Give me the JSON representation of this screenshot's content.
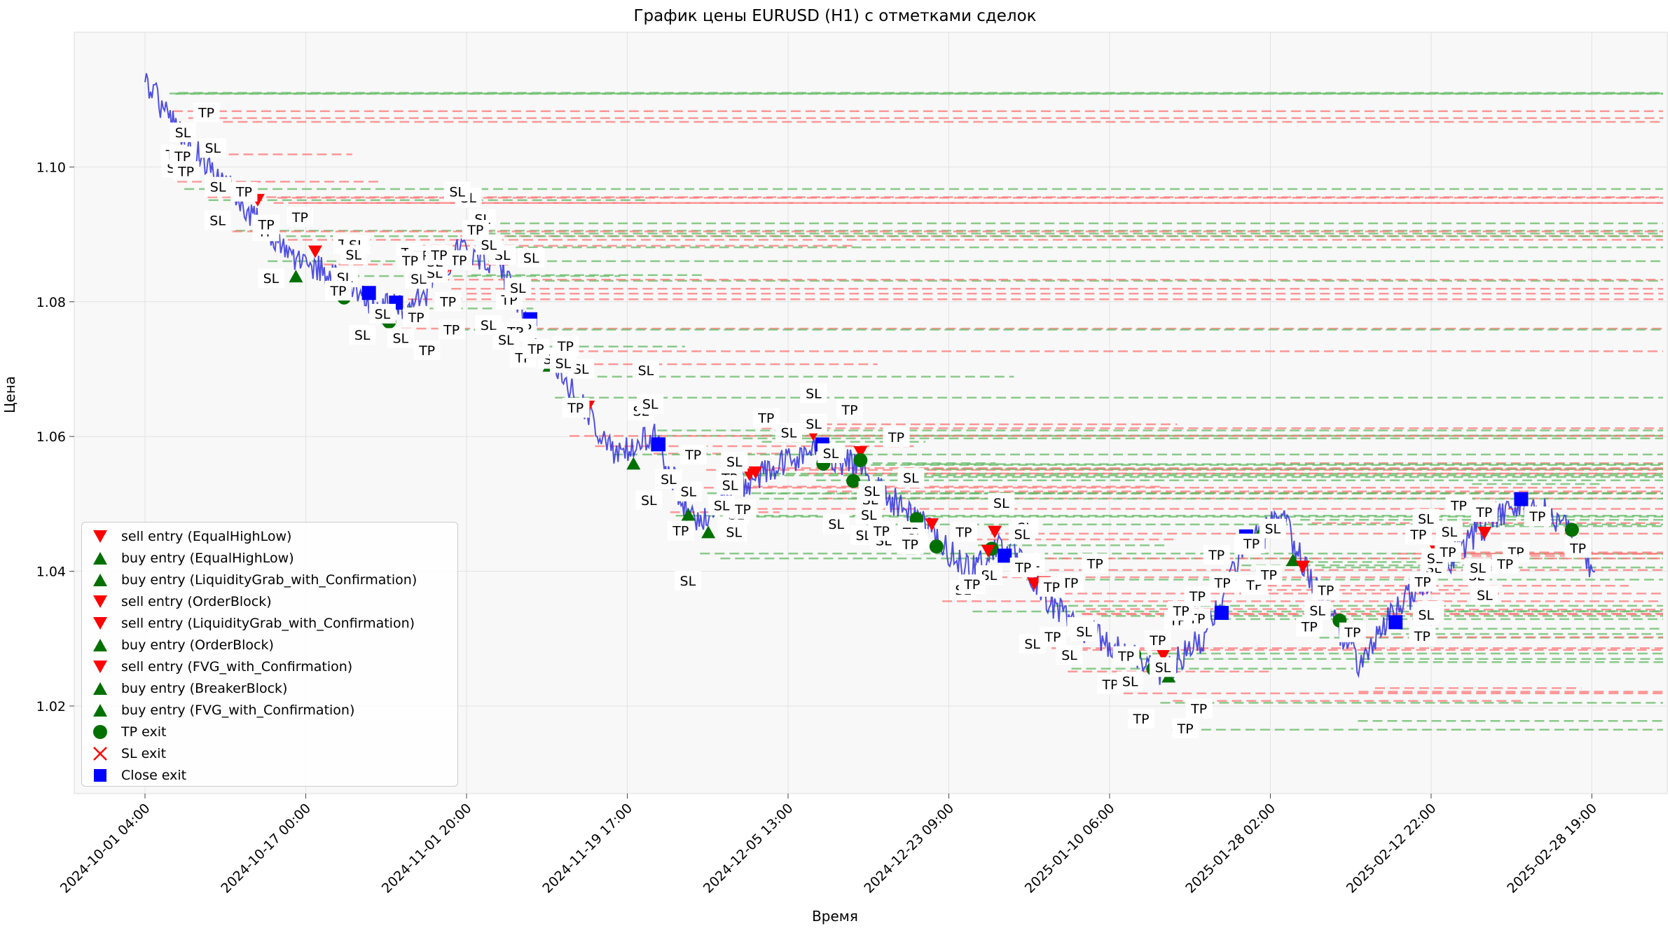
{
  "chart_data": {
    "type": "line",
    "title": "График цены EURUSD (H1) с отметками сделок",
    "xlabel": "Время",
    "ylabel": "Цена",
    "ylim": [
      1.007,
      1.12
    ],
    "y_ticks": [
      "1.02",
      "1.04",
      "1.06",
      "1.08",
      "1.10"
    ],
    "y_tick_values": [
      1.02,
      1.04,
      1.06,
      1.08,
      1.1
    ],
    "x_ticks": [
      "2024-10-01 04:00",
      "2024-10-17 00:00",
      "2024-11-01 20:00",
      "2024-11-19 17:00",
      "2024-12-05 13:00",
      "2024-12-23 09:00",
      "2025-01-10 06:00",
      "2025-01-28 02:00",
      "2025-02-12 22:00",
      "2025-02-28 19:00"
    ],
    "grid": true,
    "legend_placement": "lower-left",
    "colors": {
      "price": "#3333dd",
      "sell": "#ff0000",
      "buy": "#007000",
      "tp_exit": "#007000",
      "sl_exit": "#ff0000",
      "close_exit": "#0000ff",
      "tp_line": "#66bb66",
      "sl_line": "#ff7777"
    },
    "series": [
      {
        "name": "EURUSD",
        "x": [
          "2024-10-01 04:00",
          "2024-10-05 00:00",
          "2024-10-09 00:00",
          "2024-10-13 00:00",
          "2024-10-17 00:00",
          "2024-10-21 00:00",
          "2024-10-25 00:00",
          "2024-10-29 00:00",
          "2024-11-01 20:00",
          "2024-11-05 00:00",
          "2024-11-09 00:00",
          "2024-11-13 00:00",
          "2024-11-17 00:00",
          "2024-11-19 17:00",
          "2024-11-23 00:00",
          "2024-11-27 00:00",
          "2024-12-01 00:00",
          "2024-12-05 13:00",
          "2024-12-09 00:00",
          "2024-12-13 00:00",
          "2024-12-17 00:00",
          "2024-12-23 09:00",
          "2024-12-27 00:00",
          "2024-12-31 00:00",
          "2025-01-05 00:00",
          "2025-01-10 06:00",
          "2025-01-14 00:00",
          "2025-01-18 00:00",
          "2025-01-23 00:00",
          "2025-01-28 02:00",
          "2025-02-01 00:00",
          "2025-02-04 00:00",
          "2025-02-08 00:00",
          "2025-02-12 22:00",
          "2025-02-16 00:00",
          "2025-02-20 00:00",
          "2025-02-24 00:00",
          "2025-02-28 19:00"
        ],
        "y": [
          1.113,
          1.104,
          1.098,
          1.091,
          1.086,
          1.083,
          1.079,
          1.08,
          1.088,
          1.086,
          1.074,
          1.066,
          1.057,
          1.06,
          1.047,
          1.052,
          1.055,
          1.058,
          1.056,
          1.051,
          1.046,
          1.04,
          1.044,
          1.036,
          1.031,
          1.028,
          1.025,
          1.03,
          1.043,
          1.048,
          1.036,
          1.026,
          1.035,
          1.04,
          1.046,
          1.05,
          1.048,
          1.04
        ]
      }
    ],
    "trade_labels": {
      "tp": "TP",
      "sl": "SL"
    },
    "legend": [
      "sell entry (EqualHighLow)",
      "buy entry (EqualHighLow)",
      "buy entry (LiquidityGrab_with_Confirmation)",
      "sell entry (OrderBlock)",
      "sell entry (LiquidityGrab_with_Confirmation)",
      "buy entry (OrderBlock)",
      "sell entry (FVG_with_Confirmation)",
      "buy entry (BreakerBlock)",
      "buy entry (FVG_with_Confirmation)",
      "TP exit",
      "SL exit",
      "Close exit"
    ]
  }
}
